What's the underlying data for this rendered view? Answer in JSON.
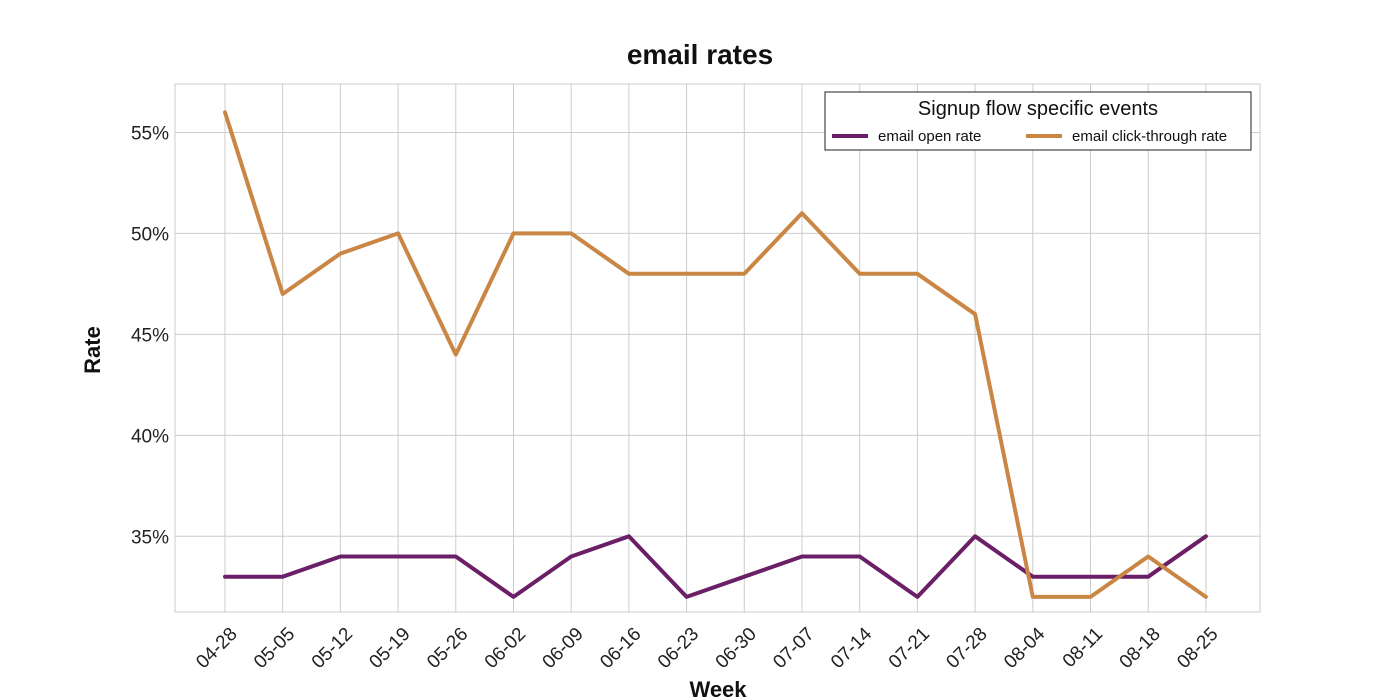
{
  "chart_data": {
    "type": "line",
    "title": "email rates",
    "xlabel": "Week",
    "ylabel": "Rate",
    "categories": [
      "04-28",
      "05-05",
      "05-12",
      "05-19",
      "05-26",
      "06-02",
      "06-09",
      "06-16",
      "06-23",
      "06-30",
      "07-07",
      "07-14",
      "07-21",
      "07-28",
      "08-04",
      "08-11",
      "08-18",
      "08-25"
    ],
    "yticks": [
      0.35,
      0.4,
      0.45,
      0.5,
      0.55
    ],
    "ytick_labels": [
      "35%",
      "40%",
      "45%",
      "50%",
      "55%"
    ],
    "ylim": [
      0.3125,
      0.574
    ],
    "grid": true,
    "legend": {
      "title": "Signup flow specific events",
      "placement": "top-right"
    },
    "series": [
      {
        "name": "email open rate",
        "color": "#6b1f66",
        "values": [
          0.33,
          0.33,
          0.34,
          0.34,
          0.34,
          0.32,
          0.34,
          0.35,
          0.32,
          0.33,
          0.34,
          0.34,
          0.32,
          0.35,
          0.33,
          0.33,
          0.33,
          0.35
        ]
      },
      {
        "name": "email click-through rate",
        "color": "#c98644",
        "values": [
          0.56,
          0.47,
          0.49,
          0.5,
          0.44,
          0.5,
          0.5,
          0.48,
          0.48,
          0.48,
          0.51,
          0.48,
          0.48,
          0.46,
          0.32,
          0.32,
          0.34,
          0.32
        ]
      }
    ]
  }
}
